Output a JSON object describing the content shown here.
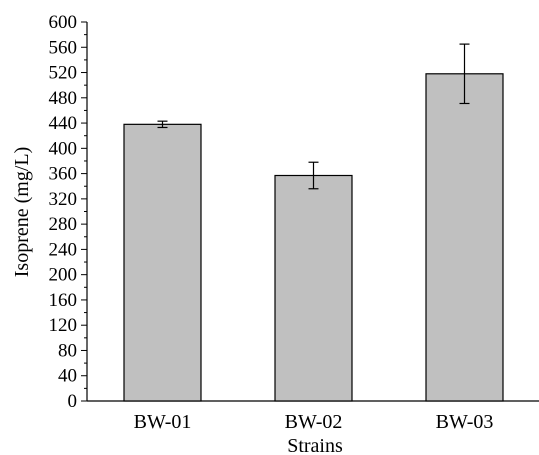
{
  "chart_data": {
    "type": "bar",
    "title": "",
    "xlabel": "Strains",
    "ylabel": "Isoprene (mg/L)",
    "categories": [
      "BW-01",
      "BW-02",
      "BW-03"
    ],
    "values": [
      438,
      357,
      518
    ],
    "error_bars": [
      5,
      21,
      47
    ],
    "ylim": [
      0,
      600
    ],
    "y_ticks": [
      "0",
      "40",
      "80",
      "120",
      "160",
      "200",
      "240",
      "280",
      "320",
      "360",
      "400",
      "440",
      "480",
      "520",
      "560",
      "600"
    ],
    "grid": false,
    "bar_color": "#c0c0c0",
    "edge_color": "#000000"
  }
}
